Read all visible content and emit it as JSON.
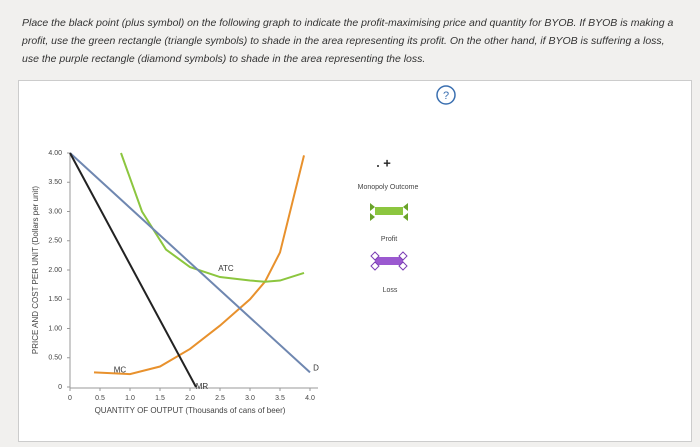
{
  "instructions": "Place the black point (plus symbol) on the following graph to indicate the profit-maximising price and quantity for BYOB. If BYOB is making a profit, use the green rectangle (triangle symbols) to shade in the area representing its profit. On the other hand, if BYOB is suffering a loss, use the purple rectangle (diamond symbols) to shade in the area representing the loss.",
  "help": "?",
  "tools": {
    "monopoly_outcome": "Monopoly Outcome",
    "profit": "Profit",
    "loss": "Loss"
  },
  "chart_data": {
    "type": "line",
    "x_label": "QUANTITY OF OUTPUT (Thousands of cans of beer)",
    "y_label": "PRICE AND COST PER UNIT (Dollars per unit)",
    "xlim": [
      0,
      4
    ],
    "ylim": [
      0,
      4
    ],
    "xticks": [
      0,
      0.5,
      {
        "value": 1,
        "label": "1.0"
      },
      1.5,
      {
        "value": 2,
        "label": "2.0"
      },
      2.5,
      {
        "value": 3,
        "label": "3.0"
      },
      3.5,
      {
        "value": 4,
        "label": "4.0"
      }
    ],
    "yticks": [
      {
        "value": 0,
        "label": "0"
      },
      {
        "value": 0.5,
        "label": "0.50"
      },
      {
        "value": 1,
        "label": "1.00"
      },
      {
        "value": 1.5,
        "label": "1.50"
      },
      {
        "value": 2,
        "label": "2.00"
      },
      {
        "value": 2.5,
        "label": "2.50"
      },
      {
        "value": 3,
        "label": "3.00"
      },
      {
        "value": 3.5,
        "label": "3.50"
      },
      {
        "value": 4,
        "label": "4.00"
      }
    ],
    "series": [
      {
        "name": "MC",
        "color": "#e8912d",
        "x": [
          0.4,
          1.0,
          1.5,
          2.0,
          2.5,
          3.0,
          3.25,
          3.5,
          3.9
        ],
        "values": [
          0.25,
          0.22,
          0.35,
          0.65,
          1.05,
          1.5,
          1.8,
          2.3,
          3.96
        ]
      },
      {
        "name": "ATC",
        "color": "#8cc63f",
        "x": [
          0.85,
          1.2,
          1.6,
          2.0,
          2.5,
          3.0,
          3.25,
          3.5,
          3.9
        ],
        "values": [
          4.0,
          3.0,
          2.35,
          2.05,
          1.88,
          1.82,
          1.8,
          1.82,
          1.95
        ]
      },
      {
        "name": "D",
        "color": "#6f87b0",
        "x": [
          0,
          4
        ],
        "values": [
          4,
          0.25
        ]
      },
      {
        "name": "MR",
        "color": "#222222",
        "x": [
          0,
          2.1
        ],
        "values": [
          4,
          0
        ]
      }
    ]
  }
}
